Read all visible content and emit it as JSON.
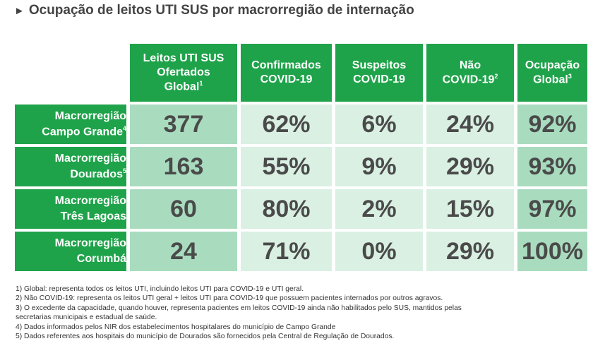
{
  "title": "Ocupação de leitos UTI SUS por macrorregião de internação",
  "colors": {
    "header_green": "#1fa34a",
    "col_leitos_bg": "#a9dcbf",
    "col_light_bg": "#d9f0e3",
    "col_global_bg": "#a9dcbf",
    "text_value": "#4a4a4a"
  },
  "columns": [
    {
      "lines": [
        "Leitos UTI SUS",
        "Ofertados",
        "Global"
      ],
      "sup": "1"
    },
    {
      "lines": [
        "Confirmados",
        "COVID-19"
      ],
      "sup": ""
    },
    {
      "lines": [
        "Suspeitos",
        "COVID-19"
      ],
      "sup": ""
    },
    {
      "lines": [
        "Não",
        "COVID-19"
      ],
      "sup": "2"
    },
    {
      "lines": [
        "Ocupação",
        "Global"
      ],
      "sup": "3"
    }
  ],
  "rows": [
    {
      "lines": [
        "Macrorregião",
        "Campo Grande"
      ],
      "sup": "4",
      "values": [
        "377",
        "62%",
        "6%",
        "24%",
        "92%"
      ]
    },
    {
      "lines": [
        "Macrorregião",
        "Dourados"
      ],
      "sup": "5",
      "values": [
        "163",
        "55%",
        "9%",
        "29%",
        "93%"
      ]
    },
    {
      "lines": [
        "Macrorregião",
        "Três Lagoas"
      ],
      "sup": "",
      "values": [
        "60",
        "80%",
        "2%",
        "15%",
        "97%"
      ]
    },
    {
      "lines": [
        "Macrorregião",
        "Corumbá"
      ],
      "sup": "",
      "values": [
        "24",
        "71%",
        "0%",
        "29%",
        "100%"
      ]
    }
  ],
  "notes": [
    "1) Global: representa todos os leitos UTI, incluindo leitos UTI para COVID-19 e UTI geral.",
    "2) Não COVID-19: representa os leitos UTI geral + leitos UTI para COVID-19 que possuem pacientes internados por outros agravos.",
    "3) O excedente da capacidade, quando houver, representa pacientes em leitos COVID-19 ainda não habilitados pelo SUS, mantidos pelas",
    "secretarias municipais e estadual de saúde.",
    "4) Dados informados pelos NIR dos estabelecimentos hospitalares do município de Campo Grande",
    "5) Dados referentes aos hospitais do município de Dourados são fornecidos pela Central de Regulação de Dourados."
  ],
  "chart_data": {
    "type": "table",
    "title": "Ocupação de leitos UTI SUS por macrorregião de internação",
    "columns": [
      "Leitos UTI SUS Ofertados Global",
      "Confirmados COVID-19",
      "Suspeitos COVID-19",
      "Não COVID-19",
      "Ocupação Global"
    ],
    "rows": [
      "Macrorregião Campo Grande",
      "Macrorregião Dourados",
      "Macrorregião Três Lagoas",
      "Macrorregião Corumbá"
    ],
    "values": [
      [
        377,
        62,
        6,
        24,
        92
      ],
      [
        163,
        55,
        9,
        29,
        93
      ],
      [
        60,
        80,
        2,
        15,
        97
      ],
      [
        24,
        71,
        0,
        29,
        100
      ]
    ]
  }
}
